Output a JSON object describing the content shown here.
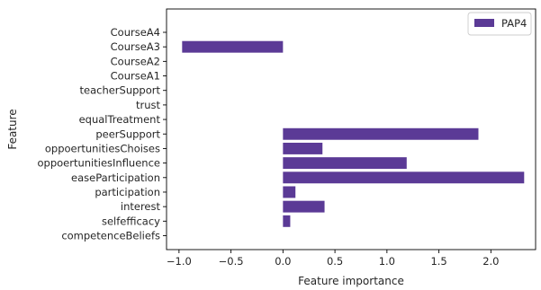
{
  "chart_data": {
    "type": "bar",
    "orientation": "horizontal",
    "xlabel": "Feature importance",
    "ylabel": "Feature",
    "xlim": [
      -1.12,
      2.43
    ],
    "xticks": [
      -1.0,
      -0.5,
      0.0,
      0.5,
      1.0,
      1.5,
      2.0
    ],
    "xtick_labels": [
      "−1.0",
      "−0.5",
      "0.0",
      "0.5",
      "1.0",
      "1.5",
      "2.0"
    ],
    "categories": [
      "CourseA4",
      "CourseA3",
      "CourseA2",
      "CourseA1",
      "teacherSupport",
      "trust",
      "equalTreatment",
      "peerSupport",
      "oppoertunitiesChoises",
      "oppoertunitiesInfluence",
      "easeParticipation",
      "participation",
      "interest",
      "selfefficacy",
      "competenceBeliefs"
    ],
    "series": [
      {
        "name": "PAP4",
        "color": "#5b3a96",
        "values": [
          0,
          -0.97,
          0,
          0,
          0,
          0,
          0,
          1.88,
          0.38,
          1.19,
          2.32,
          0.12,
          0.4,
          0.07,
          0
        ]
      }
    ],
    "legend_position": "top-right",
    "grid": false
  }
}
